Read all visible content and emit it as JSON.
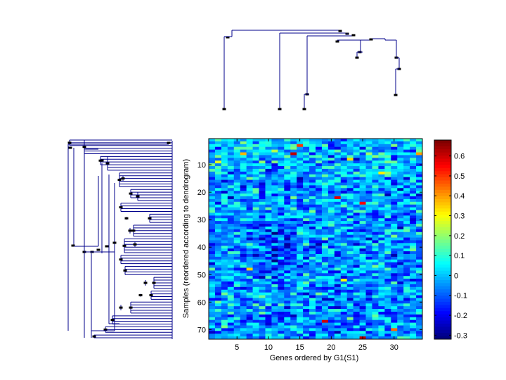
{
  "chart_data": [
    {
      "type": "heatmap",
      "title": "",
      "xlabel": "Genes ordered by G1(S1)",
      "ylabel": "Samples (reordered according to dendrogram)",
      "x_range": [
        0.5,
        34.5
      ],
      "y_range": [
        0.5,
        73.5
      ],
      "x_ticks": [
        5,
        10,
        15,
        20,
        25,
        30
      ],
      "y_ticks": [
        10,
        20,
        30,
        40,
        50,
        60,
        70
      ],
      "n_genes": 34,
      "n_samples": 73,
      "colormap": "jet",
      "clim": [
        -0.32,
        0.68
      ],
      "colorbar_ticks": [
        -0.3,
        -0.2,
        -0.1,
        0,
        0.1,
        0.2,
        0.3,
        0.4,
        0.5,
        0.6
      ],
      "highlights": [
        {
          "gene": 15,
          "sample": 3,
          "value": 0.5
        },
        {
          "gene": 14,
          "sample": 6,
          "value": 0.62
        },
        {
          "gene": 21,
          "sample": 22,
          "value": 0.58
        },
        {
          "gene": 25,
          "sample": 24,
          "value": 0.55
        },
        {
          "gene": 19,
          "sample": 67,
          "value": 0.6
        },
        {
          "gene": 25,
          "sample": 73,
          "value": 0.62
        },
        {
          "gene": 30,
          "sample": 70,
          "value": 0.45
        },
        {
          "gene": 34,
          "sample": 6,
          "value": 0.4
        },
        {
          "gene": 6,
          "sample": 6,
          "value": 0.38
        },
        {
          "gene": 7,
          "sample": 48,
          "value": 0.35
        },
        {
          "gene": 28,
          "sample": 13,
          "value": 0.32
        },
        {
          "gene": 23,
          "sample": 8,
          "value": 0.34
        },
        {
          "gene": 2,
          "sample": 9,
          "value": 0.28
        },
        {
          "gene": 22,
          "sample": 52,
          "value": 0.3
        }
      ]
    },
    {
      "type": "dendrogram",
      "orientation": "top",
      "leaves": 34
    },
    {
      "type": "dendrogram",
      "orientation": "left",
      "leaves": 73
    }
  ]
}
